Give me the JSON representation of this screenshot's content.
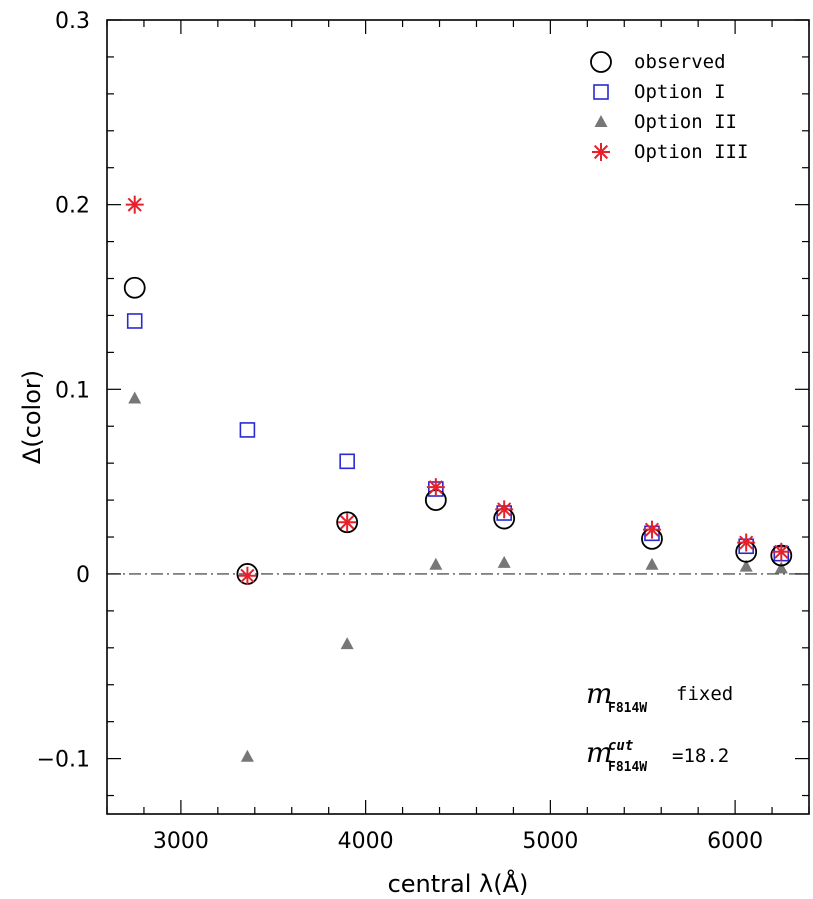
{
  "chart_data": {
    "type": "scatter",
    "xlabel": "central λ(Å)",
    "ylabel": "Δ(color)",
    "xlim": [
      2600,
      6400
    ],
    "ylim": [
      -0.13,
      0.3
    ],
    "xticks": [
      3000,
      4000,
      5000,
      6000
    ],
    "yticks": [
      0.3,
      0.2,
      0.1,
      0,
      -0.1
    ],
    "ytick_labels": [
      "0.3",
      "0.2",
      "0.1",
      "0",
      "−0.1"
    ],
    "reference_line": {
      "y": 0,
      "style": "dash-dot"
    },
    "legend_position": "top-right",
    "series": [
      {
        "name": "observed",
        "marker": "open-circle",
        "color": "#000000",
        "points": [
          [
            2750,
            0.155
          ],
          [
            3360,
            0.0
          ],
          [
            3900,
            0.028
          ],
          [
            4380,
            0.04
          ],
          [
            4750,
            0.03
          ],
          [
            5550,
            0.019
          ],
          [
            6060,
            0.012
          ],
          [
            6250,
            0.01
          ]
        ]
      },
      {
        "name": "Option I",
        "marker": "open-square",
        "color": "#2a2ad0",
        "points": [
          [
            2750,
            0.137
          ],
          [
            3360,
            0.078
          ],
          [
            3900,
            0.061
          ],
          [
            4380,
            0.046
          ],
          [
            4750,
            0.033
          ],
          [
            5550,
            0.022
          ],
          [
            6060,
            0.015
          ],
          [
            6250,
            0.011
          ]
        ]
      },
      {
        "name": "Option II",
        "marker": "filled-triangle",
        "color": "#777777",
        "points": [
          [
            2750,
            0.095
          ],
          [
            3360,
            -0.099
          ],
          [
            3900,
            -0.038
          ],
          [
            4380,
            0.005
          ],
          [
            4750,
            0.006
          ],
          [
            5550,
            0.005
          ],
          [
            6060,
            0.004
          ],
          [
            6250,
            0.003
          ]
        ]
      },
      {
        "name": "Option III",
        "marker": "asterisk",
        "color": "#e8202a",
        "points": [
          [
            2750,
            0.2
          ],
          [
            3360,
            -0.001
          ],
          [
            3900,
            0.028
          ],
          [
            4380,
            0.047
          ],
          [
            4750,
            0.035
          ],
          [
            5550,
            0.024
          ],
          [
            6060,
            0.017
          ],
          [
            6250,
            0.012
          ]
        ]
      }
    ],
    "annotations": {
      "line1": {
        "m": "m",
        "sub": "F814W",
        "text": "fixed"
      },
      "line2": {
        "m": "m",
        "sup": "cut",
        "sub": "F814W",
        "text": "=18.2"
      }
    }
  }
}
